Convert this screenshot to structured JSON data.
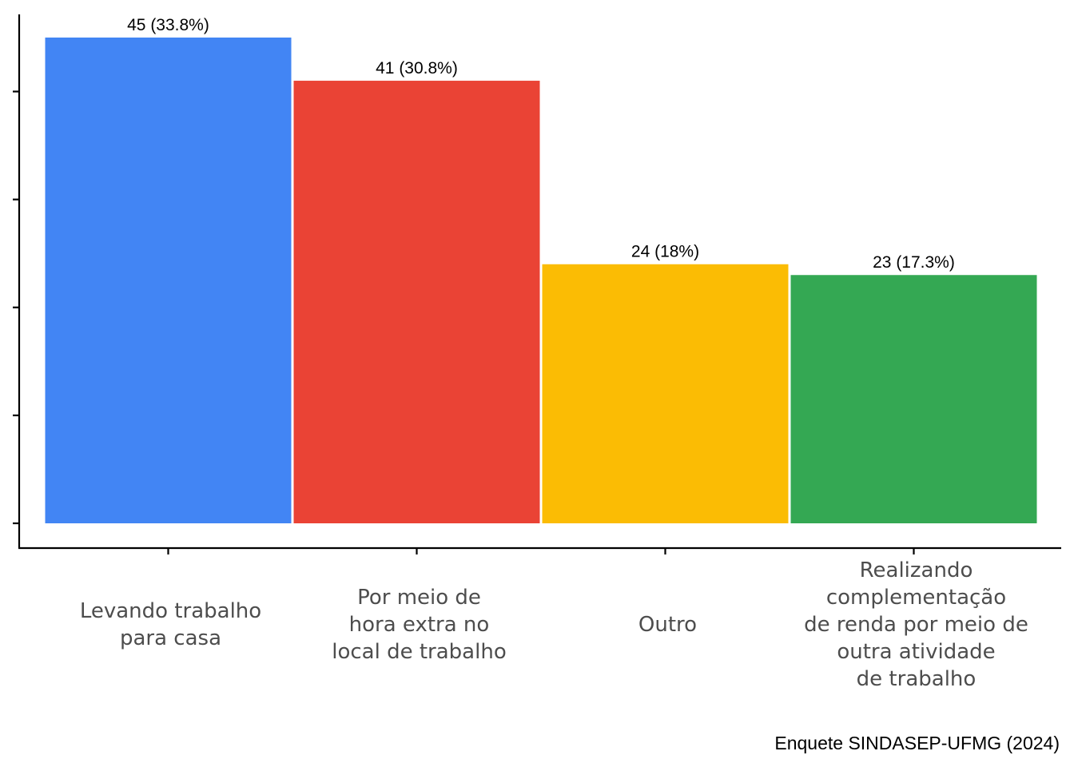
{
  "chart_data": {
    "type": "bar",
    "categories": [
      "Levando trabalho\npara casa",
      "Por meio de\nhora extra no\nlocal de trabalho",
      "Outro",
      "Realizando\ncomplementação\nde renda por meio de\noutra atividade\nde trabalho"
    ],
    "values": [
      45,
      41,
      24,
      23
    ],
    "labels": [
      "45 (33.8%)",
      "41 (30.8%)",
      "24 (18%)",
      "23 (17.3%)"
    ],
    "colors": [
      "#4285F4",
      "#EA4335",
      "#FBBC04",
      "#34A853"
    ],
    "ylim": [
      0,
      45
    ],
    "xlabel": "",
    "ylabel": "",
    "caption": "Enquete SINDASEP-UFMG (2024)"
  }
}
